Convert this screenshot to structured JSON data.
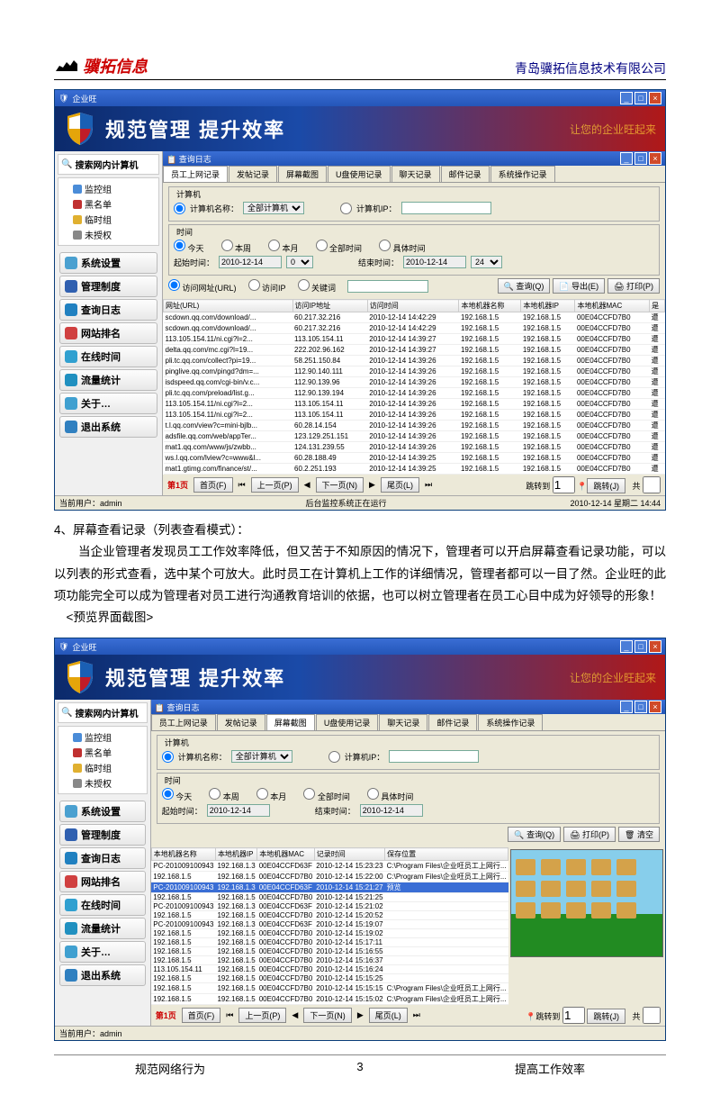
{
  "doc": {
    "logo_text": "骥拓信息",
    "company": "青岛骥拓信息技术有限公司",
    "section_title": "4、屏幕查看记录（列表查看模式）：",
    "para": "当企业管理者发现员工工作效率降低，但又苦于不知原因的情况下，管理者可以开启屏幕查看记录功能，可以以列表的形式查看，选中某个可放大。此时员工在计算机上工作的详细情况，管理者都可以一目了然。企业旺的此项功能完全可以成为管理者对员工进行沟通教育培训的依据，也可以树立管理者在员工心目中成为好领导的形象！",
    "preview_label": "<预览界面截图>",
    "footer_left": "规范网络行为",
    "footer_page": "3",
    "footer_right": "提高工作效率"
  },
  "app": {
    "title": "企业旺",
    "banner": "规范管理  提升效率",
    "banner_sub": "让您的企业旺起来",
    "search_label": "搜索网内计算机",
    "tree": [
      "监控组",
      "黑名单",
      "临时组",
      "未授权"
    ],
    "tree_colors": [
      "#4a8cd8",
      "#c03030",
      "#e0b030",
      "#888"
    ],
    "side": [
      "系统设置",
      "管理制度",
      "查询日志",
      "网站排名",
      "在线时间",
      "流量统计",
      "关于…",
      "退出系统"
    ],
    "side_colors": [
      "#4aa0d0",
      "#3060b0",
      "#2080c0",
      "#d04040",
      "#30a0d0",
      "#2090c0",
      "#40a0d0",
      "#3080c0"
    ],
    "sub_title": "查询日志",
    "tabs": [
      "员工上网记录",
      "发帖记录",
      "屏幕截图",
      "U盘使用记录",
      "聊天记录",
      "邮件记录",
      "系统操作记录"
    ],
    "fs_computer": "计算机",
    "lbl_name": "计算机名称：",
    "sel_all": "全部计算机",
    "lbl_ip": "计算机IP：",
    "fs_time": "时间",
    "time_opts": [
      "今天",
      "本周",
      "本月",
      "全部时间",
      "具体时间"
    ],
    "lbl_start": "起始时间：",
    "lbl_end": "结束时间：",
    "date_val": "2010-12-14",
    "url_opts": [
      "访问网址(URL)",
      "访问IP",
      "关键词"
    ],
    "btn_query": "查询(Q)",
    "btn_export": "导出(E)",
    "btn_print": "打印(P)",
    "btn_clear": "清空",
    "cols1": [
      "网址(URL)",
      "访问IP地址",
      "访问时间",
      "本地机器名称",
      "本地机器IP",
      "本地机器MAC",
      "是"
    ],
    "rows1": [
      [
        "scdown.qq.com/download/...",
        "60.217.32.216",
        "2010-12-14 14:42:29",
        "192.168.1.5",
        "192.168.1.5",
        "00E04CCFD7B0",
        "遭"
      ],
      [
        "scdown.qq.com/download/...",
        "60.217.32.216",
        "2010-12-14 14:42:29",
        "192.168.1.5",
        "192.168.1.5",
        "00E04CCFD7B0",
        "遭"
      ],
      [
        "113.105.154.11/ni.cgi?l=2...",
        "113.105.154.11",
        "2010-12-14 14:39:27",
        "192.168.1.5",
        "192.168.1.5",
        "00E04CCFD7B0",
        "遭"
      ],
      [
        "delta.qq.com/mc.cgi?l=19...",
        "222.202.96.162",
        "2010-12-14 14:39:27",
        "192.168.1.5",
        "192.168.1.5",
        "00E04CCFD7B0",
        "遭"
      ],
      [
        "pli.tc.qq.com/collect?pi=19...",
        "58.251.150.84",
        "2010-12-14 14:39:26",
        "192.168.1.5",
        "192.168.1.5",
        "00E04CCFD7B0",
        "遭"
      ],
      [
        "pinglive.qq.com/pingd?dm=...",
        "112.90.140.111",
        "2010-12-14 14:39:26",
        "192.168.1.5",
        "192.168.1.5",
        "00E04CCFD7B0",
        "遭"
      ],
      [
        "isdspeed.qq.com/cgi-bin/v.c...",
        "112.90.139.96",
        "2010-12-14 14:39:26",
        "192.168.1.5",
        "192.168.1.5",
        "00E04CCFD7B0",
        "遭"
      ],
      [
        "pli.tc.qq.com/preload/list.g...",
        "112.90.139.194",
        "2010-12-14 14:39:26",
        "192.168.1.5",
        "192.168.1.5",
        "00E04CCFD7B0",
        "遭"
      ],
      [
        "113.105.154.11/ni.cgi?l=2...",
        "113.105.154.11",
        "2010-12-14 14:39:26",
        "192.168.1.5",
        "192.168.1.5",
        "00E04CCFD7B0",
        "遭"
      ],
      [
        "113.105.154.11/ni.cgi?l=2...",
        "113.105.154.11",
        "2010-12-14 14:39:26",
        "192.168.1.5",
        "192.168.1.5",
        "00E04CCFD7B0",
        "遭"
      ],
      [
        "t.l.qq.com/view?c=mini-bjlb...",
        "60.28.14.154",
        "2010-12-14 14:39:26",
        "192.168.1.5",
        "192.168.1.5",
        "00E04CCFD7B0",
        "遭"
      ],
      [
        "adsfile.qq.com/web/appTer...",
        "123.129.251.151",
        "2010-12-14 14:39:26",
        "192.168.1.5",
        "192.168.1.5",
        "00E04CCFD7B0",
        "遭"
      ],
      [
        "mat1.qq.com/www/js/zwbb...",
        "124.131.239.55",
        "2010-12-14 14:39:26",
        "192.168.1.5",
        "192.168.1.5",
        "00E04CCFD7B0",
        "遭"
      ],
      [
        "ws.l.qq.com/lview?c=www&l...",
        "60.28.188.49",
        "2010-12-14 14:39:25",
        "192.168.1.5",
        "192.168.1.5",
        "00E04CCFD7B0",
        "遭"
      ],
      [
        "mat1.gtimg.com/finance/st/...",
        "60.2.251.193",
        "2010-12-14 14:39:25",
        "192.168.1.5",
        "192.168.1.5",
        "00E04CCFD7B0",
        "遭"
      ]
    ],
    "pager": {
      "page": "第1页",
      "first": "首页(F)",
      "prev": "上一页(P)",
      "next": "下一页(N)",
      "last": "尾页(L)",
      "goto": "跳转到",
      "go": "跳转(J)",
      "total": "共"
    },
    "status_user": "当前用户：admin",
    "status_msg": "后台监控系统正在运行",
    "status_time": "2010-12-14  星期二  14:44",
    "cols2": [
      "本地机器名称",
      "本地机器IP",
      "本地机器MAC",
      "记录时间",
      "保存位置"
    ],
    "rows2": [
      [
        "PC-201009100943",
        "192.168.1.3",
        "00E04CCFD63F",
        "2010-12-14 15:23:23",
        "C:\\Program Files\\企业旺员工上网行..."
      ],
      [
        "192.168.1.5",
        "192.168.1.5",
        "00E04CCFD7B0",
        "2010-12-14 15:22:00",
        "C:\\Program Files\\企业旺员工上网行..."
      ],
      [
        "PC-201009100943",
        "192.168.1.3",
        "00E04CCFD63F",
        "2010-12-14 15:21:27",
        "预览"
      ],
      [
        "192.168.1.5",
        "192.168.1.5",
        "00E04CCFD7B0",
        "2010-12-14 15:21:25",
        ""
      ],
      [
        "PC-201009100943",
        "192.168.1.3",
        "00E04CCFD63F",
        "2010-12-14 15:21:02",
        ""
      ],
      [
        "192.168.1.5",
        "192.168.1.5",
        "00E04CCFD7B0",
        "2010-12-14 15:20:52",
        ""
      ],
      [
        "PC-201009100943",
        "192.168.1.3",
        "00E04CCFD63F",
        "2010-12-14 15:19:07",
        ""
      ],
      [
        "192.168.1.5",
        "192.168.1.5",
        "00E04CCFD7B0",
        "2010-12-14 15:19:02",
        ""
      ],
      [
        "192.168.1.5",
        "192.168.1.5",
        "00E04CCFD7B0",
        "2010-12-14 15:17:11",
        ""
      ],
      [
        "192.168.1.5",
        "192.168.1.5",
        "00E04CCFD7B0",
        "2010-12-14 15:16:55",
        ""
      ],
      [
        "192.168.1.5",
        "192.168.1.5",
        "00E04CCFD7B0",
        "2010-12-14 15:16:37",
        ""
      ],
      [
        "113.105.154.11",
        "192.168.1.5",
        "00E04CCFD7B0",
        "2010-12-14 15:16:24",
        ""
      ],
      [
        "192.168.1.5",
        "192.168.1.5",
        "00E04CCFD7B0",
        "2010-12-14 15:15:25",
        ""
      ],
      [
        "192.168.1.5",
        "192.168.1.5",
        "00E04CCFD7B0",
        "2010-12-14 15:15:15",
        "C:\\Program Files\\企业旺员工上网行..."
      ],
      [
        "192.168.1.5",
        "192.168.1.5",
        "00E04CCFD7B0",
        "2010-12-14 15:15:02",
        "C:\\Program Files\\企业旺员工上网行..."
      ]
    ]
  }
}
